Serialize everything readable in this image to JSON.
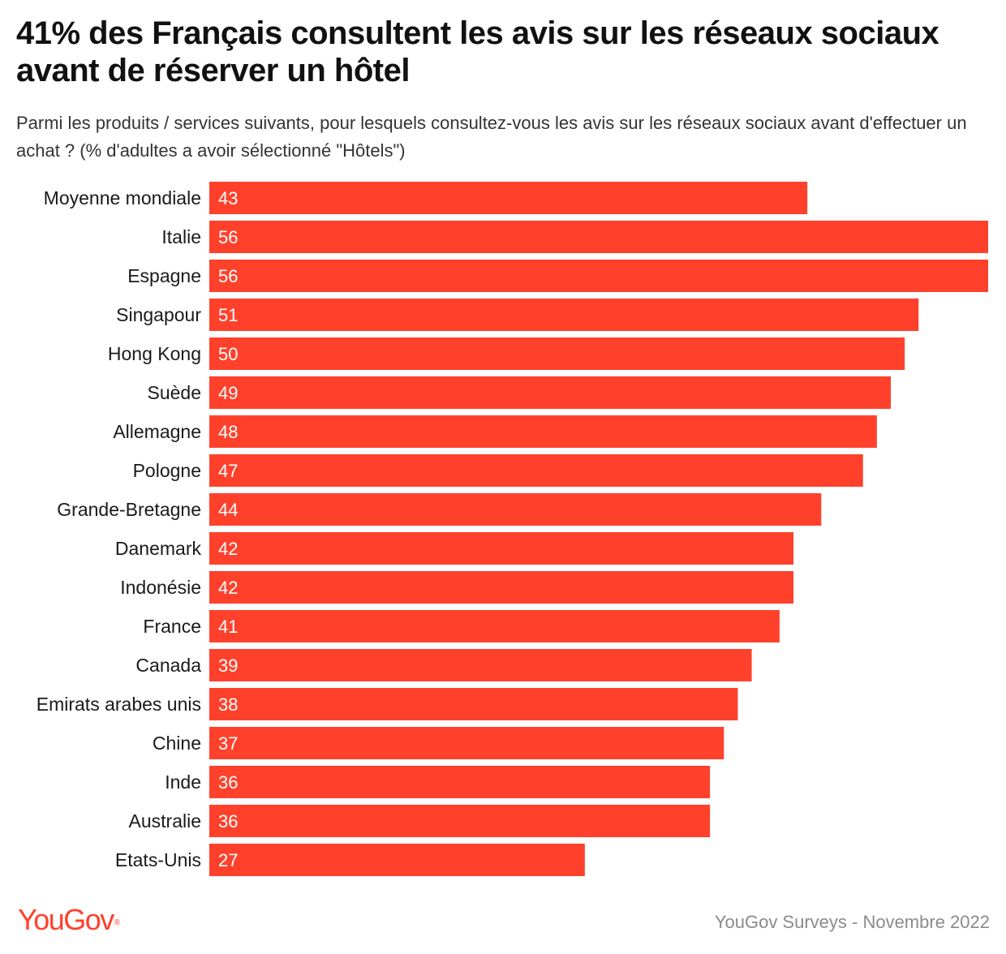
{
  "header": {
    "title": "41% des Français consultent les avis sur les réseaux sociaux avant de réserver un hôtel",
    "subtitle": "Parmi les produits / services suivants, pour lesquels consultez-vous les avis sur les réseaux sociaux avant d'effectuer un achat ? (% d'adultes a avoir sélectionné \"Hôtels\")"
  },
  "footer": {
    "logo": "YouGov",
    "source": "YouGov Surveys - Novembre 2022"
  },
  "colors": {
    "bar": "#ff412c",
    "bar_label": "#ffffff",
    "category_label": "#1a1a1a",
    "brand": "#ff412c"
  },
  "chart_data": {
    "type": "bar",
    "orientation": "horizontal",
    "categories": [
      "Moyenne mondiale",
      "Italie",
      "Espagne",
      "Singapour",
      "Hong Kong",
      "Suède",
      "Allemagne",
      "Pologne",
      "Grande-Bretagne",
      "Danemark",
      "Indonésie",
      "France",
      "Canada",
      "Emirats arabes unis",
      "Chine",
      "Inde",
      "Australie",
      "Etats-Unis"
    ],
    "values": [
      43,
      56,
      56,
      51,
      50,
      49,
      48,
      47,
      44,
      42,
      42,
      41,
      39,
      38,
      37,
      36,
      36,
      27
    ],
    "xlim": [
      0,
      56
    ],
    "grid": false,
    "legend": "none",
    "data_labels": "inside-start"
  }
}
